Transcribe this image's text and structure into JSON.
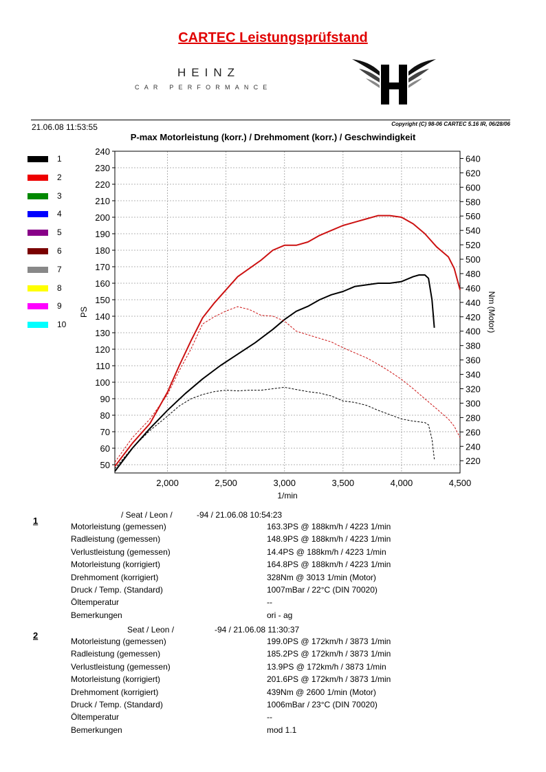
{
  "header": {
    "title": "CARTEC Leistungsprüfstand",
    "brand_word": "HEINZ",
    "brand_sub": "CAR PERFORMANCE",
    "timestamp": "21.06.08 11:53:55",
    "copyright": "Copyright (C) 98-06 CARTEC 5.16 IR, 06/28/06"
  },
  "colors": {
    "title_red": "#e00000",
    "series_red": "#cc1111",
    "series_black": "#000000"
  },
  "icons": {
    "logo": "heinz-h-wing-logo"
  },
  "legend": [
    {
      "label": "1",
      "color": "#000000"
    },
    {
      "label": "2",
      "color": "#ee0000"
    },
    {
      "label": "3",
      "color": "#008800"
    },
    {
      "label": "4",
      "color": "#0000ff"
    },
    {
      "label": "5",
      "color": "#880088"
    },
    {
      "label": "6",
      "color": "#7a0000"
    },
    {
      "label": "7",
      "color": "#888888"
    },
    {
      "label": "8",
      "color": "#ffff00"
    },
    {
      "label": "9",
      "color": "#ff00ff"
    },
    {
      "label": "10",
      "color": "#00ffff"
    }
  ],
  "chart_data": {
    "type": "line",
    "title": "P-max Motorleistung (korr.) / Drehmoment (korr.) / Geschwindigkeit",
    "xlabel": "1/min",
    "ylabel": "PS",
    "ylabel_right": "Nm (Motor)",
    "xlim": [
      1550,
      4500
    ],
    "ylim": [
      45,
      240
    ],
    "ylim_right": [
      203,
      650
    ],
    "x_ticks": [
      {
        "v": 2000,
        "label": "2,000"
      },
      {
        "v": 2500,
        "label": "2,500"
      },
      {
        "v": 3000,
        "label": "3,000"
      },
      {
        "v": 3500,
        "label": "3,500"
      },
      {
        "v": 4000,
        "label": "4,000"
      },
      {
        "v": 4500,
        "label": "4,500"
      }
    ],
    "y_ticks": [
      "50",
      "60",
      "70",
      "80",
      "90",
      "100",
      "110",
      "120",
      "130",
      "140",
      "150",
      "160",
      "170",
      "180",
      "190",
      "200",
      "210",
      "220",
      "230",
      "240"
    ],
    "y_right_ticks": [
      "220",
      "240",
      "260",
      "280",
      "300",
      "320",
      "340",
      "360",
      "380",
      "400",
      "420",
      "440",
      "460",
      "480",
      "500",
      "520",
      "540",
      "560",
      "580",
      "600",
      "620",
      "640"
    ],
    "grid": true,
    "series": [
      {
        "name": "1",
        "axis": "left",
        "style": "solid",
        "color": "#000000",
        "x": [
          1550,
          1700,
          1850,
          2000,
          2150,
          2300,
          2450,
          2600,
          2750,
          2900,
          3000,
          3100,
          3200,
          3300,
          3400,
          3500,
          3600,
          3700,
          3800,
          3900,
          4000,
          4100,
          4150,
          4200,
          4230,
          4260,
          4280
        ],
        "y": [
          46,
          60,
          72,
          83,
          93,
          102,
          110,
          117,
          124,
          132,
          138,
          143,
          146,
          150,
          153,
          155,
          158,
          159,
          160,
          160,
          161,
          164,
          165,
          165,
          163,
          150,
          133
        ]
      },
      {
        "name": "1",
        "axis": "right",
        "style": "dashed",
        "color": "#000000",
        "x": [
          1550,
          1700,
          1850,
          2000,
          2100,
          2200,
          2300,
          2400,
          2500,
          2600,
          2700,
          2800,
          2900,
          3000,
          3100,
          3200,
          3300,
          3400,
          3500,
          3600,
          3700,
          3800,
          3900,
          4000,
          4100,
          4200,
          4230,
          4260,
          4280
        ],
        "y": [
          209,
          238,
          262,
          282,
          296,
          306,
          312,
          316,
          318,
          317,
          318,
          318,
          320,
          322,
          319,
          316,
          314,
          310,
          303,
          301,
          297,
          290,
          284,
          278,
          275,
          273,
          270,
          250,
          222
        ]
      },
      {
        "name": "2",
        "axis": "left",
        "style": "solid",
        "color": "#cc1111",
        "x": [
          1550,
          1700,
          1850,
          2000,
          2100,
          2200,
          2300,
          2400,
          2500,
          2600,
          2700,
          2800,
          2900,
          3000,
          3100,
          3200,
          3300,
          3400,
          3500,
          3600,
          3700,
          3800,
          3900,
          4000,
          4100,
          4200,
          4300,
          4400,
          4450,
          4500
        ],
        "y": [
          49,
          63,
          75,
          94,
          110,
          125,
          139,
          148,
          156,
          164,
          169,
          174,
          180,
          183,
          183,
          185,
          189,
          192,
          195,
          197,
          199,
          201,
          201,
          200,
          196,
          190,
          182,
          176,
          169,
          156
        ]
      },
      {
        "name": "2",
        "axis": "right",
        "style": "dashed",
        "color": "#cc1111",
        "x": [
          1550,
          1700,
          1850,
          2000,
          2100,
          2200,
          2300,
          2400,
          2500,
          2600,
          2700,
          2800,
          2900,
          3000,
          3100,
          3200,
          3300,
          3400,
          3500,
          3600,
          3700,
          3800,
          3900,
          4000,
          4100,
          4200,
          4300,
          4400,
          4450,
          4500
        ],
        "y": [
          218,
          252,
          278,
          312,
          345,
          375,
          410,
          420,
          428,
          434,
          430,
          422,
          421,
          414,
          400,
          395,
          390,
          385,
          377,
          370,
          363,
          354,
          344,
          333,
          320,
          306,
          292,
          278,
          268,
          252
        ]
      }
    ]
  },
  "records": [
    {
      "number": "1",
      "head_a": "/ Seat / Leon /",
      "head_b": "-94 / 21.06.08 10:54:23",
      "rows": [
        {
          "label": "Motorleistung (gemessen)",
          "value": "163.3PS @ 188km/h / 4223 1/min"
        },
        {
          "label": "Radleistung (gemessen)",
          "value": "148.9PS @ 188km/h / 4223 1/min"
        },
        {
          "label": "Verlustleistung (gemessen)",
          "value": "14.4PS @ 188km/h / 4223 1/min"
        },
        {
          "label": "Motorleistung (korrigiert)",
          "value": "164.8PS @ 188km/h / 4223 1/min"
        },
        {
          "label": "Drehmoment (korrigiert)",
          "value": "328Nm @ 3013 1/min (Motor)"
        },
        {
          "label": "Druck / Temp. (Standard)",
          "value": "1007mBar / 22°C    (DIN 70020)"
        },
        {
          "label": "Öltemperatur",
          "value": "--"
        },
        {
          "label": "Bemerkungen",
          "value": "ori - ag"
        }
      ]
    },
    {
      "number": "2",
      "head_a": "Seat / Leon /",
      "head_b": "-94 / 21.06.08 11:30:37",
      "rows": [
        {
          "label": "Motorleistung (gemessen)",
          "value": "199.0PS @ 172km/h / 3873 1/min"
        },
        {
          "label": "Radleistung (gemessen)",
          "value": "185.2PS @ 172km/h / 3873 1/min"
        },
        {
          "label": "Verlustleistung (gemessen)",
          "value": "13.9PS @ 172km/h / 3873 1/min"
        },
        {
          "label": "Motorleistung (korrigiert)",
          "value": "201.6PS @ 172km/h / 3873 1/min"
        },
        {
          "label": "Drehmoment (korrigiert)",
          "value": "439Nm @ 2600 1/min (Motor)"
        },
        {
          "label": "Druck / Temp. (Standard)",
          "value": "1006mBar / 23°C    (DIN 70020)"
        },
        {
          "label": "Öltemperatur",
          "value": "--"
        },
        {
          "label": "Bemerkungen",
          "value": "mod 1.1"
        }
      ]
    }
  ]
}
